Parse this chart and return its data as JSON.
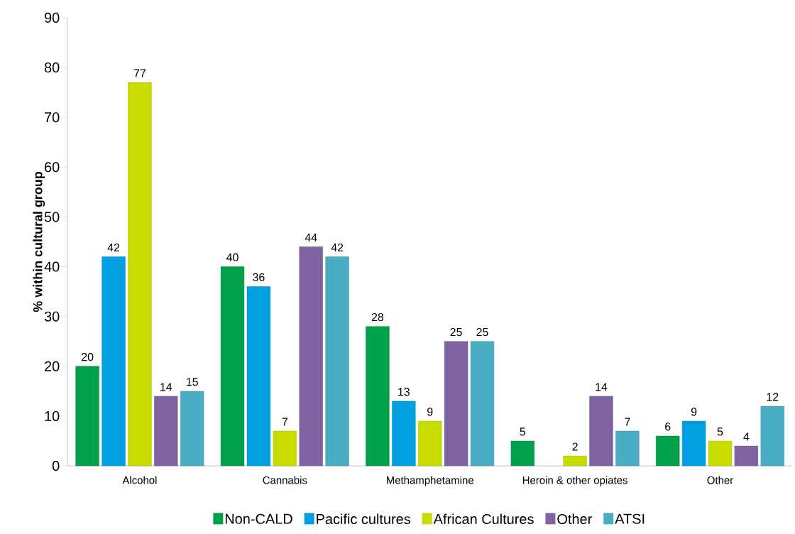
{
  "chart_data": {
    "type": "bar",
    "ylabel": "% within cultural group",
    "categories": [
      "Alcohol",
      "Cannabis",
      "Methamphetamine",
      "Heroin  & other opiates",
      "Other"
    ],
    "series": [
      {
        "name": "Non-CALD",
        "color": "#00a04a",
        "values": [
          20,
          40,
          28,
          5,
          6
        ]
      },
      {
        "name": "Pacific cultures",
        "color": "#00a0e0",
        "values": [
          42,
          36,
          13,
          null,
          9
        ]
      },
      {
        "name": "African Cultures",
        "color": "#c8dc00",
        "values": [
          77,
          7,
          9,
          2,
          5
        ]
      },
      {
        "name": "Other",
        "color": "#8064a2",
        "values": [
          14,
          44,
          25,
          14,
          4
        ]
      },
      {
        "name": "ATSI",
        "color": "#4bacc6",
        "values": [
          15,
          42,
          25,
          7,
          12
        ]
      }
    ],
    "ylim": [
      0,
      90
    ],
    "yticks": [
      0,
      10,
      20,
      30,
      40,
      50,
      60,
      70,
      80,
      90
    ],
    "data_labels": true,
    "legend": "bottom",
    "grid": false
  }
}
